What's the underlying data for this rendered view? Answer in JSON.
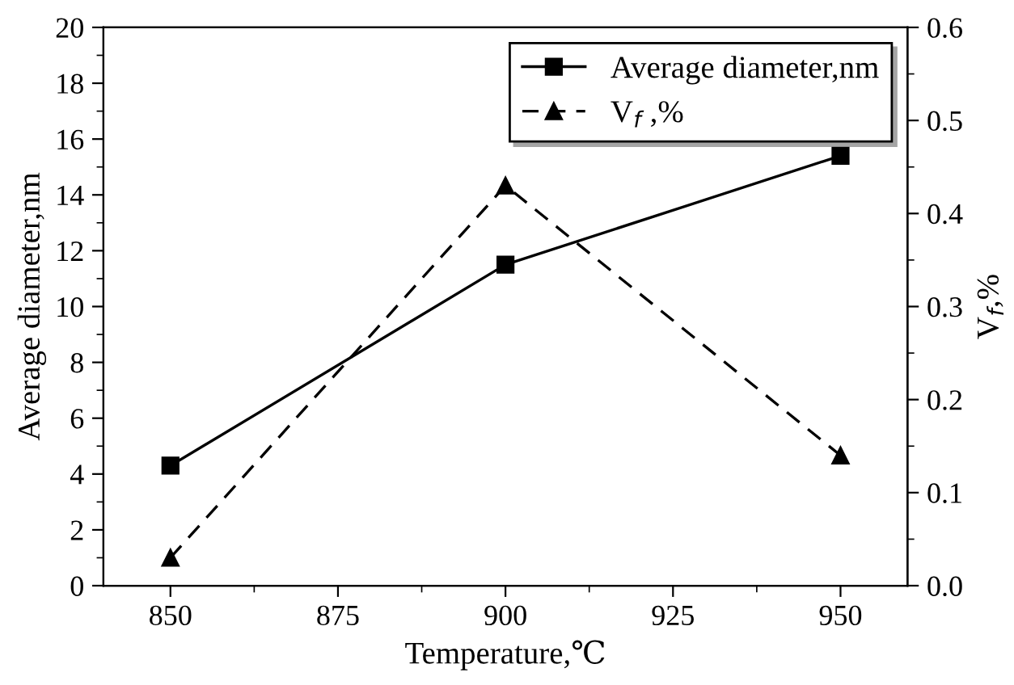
{
  "chart_data": {
    "type": "line",
    "xlabel": "Temperature,℃",
    "ylabel": "Average diameter,nm",
    "y2label": "V$_{f}$,%",
    "x": [
      850,
      900,
      950
    ],
    "series": [
      {
        "name": "Average diameter,nm",
        "color": "#000000",
        "values": [
          4.3,
          11.5,
          15.4
        ],
        "marker": "square",
        "line_style": "solid"
      },
      {
        "name": "V$_{f}$ ,%",
        "color": "#000000",
        "values": [
          0.03,
          0.43,
          0.14
        ],
        "marker": "triangle",
        "line_style": "dashed",
        "axis": "y2"
      }
    ],
    "xlim": [
      840,
      960
    ],
    "xticks": [
      850,
      875,
      900,
      925,
      950
    ],
    "ylim": [
      0,
      20
    ],
    "yticks": [
      0,
      2,
      4,
      6,
      8,
      10,
      12,
      14,
      16,
      18,
      20
    ],
    "y2lim": [
      0,
      0.6
    ],
    "y2ticks": [
      {
        "value": 0,
        "label": "0.0"
      },
      0.1,
      0.2,
      0.3,
      0.4,
      0.5,
      0.6
    ],
    "grid": false,
    "legend": "top right"
  }
}
